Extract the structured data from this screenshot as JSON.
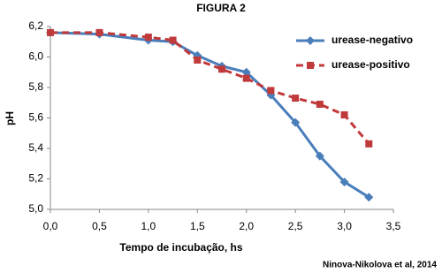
{
  "chart_data": {
    "type": "line",
    "title": "FIGURA 2",
    "x_label": "Tempo de incubação, hs",
    "y_label": "pH",
    "annotation": "Ninova-Nikolova et al, 2014",
    "x": [
      0,
      0.5,
      1.0,
      1.25,
      1.5,
      1.75,
      2.0,
      2.25,
      2.5,
      2.75,
      3.0,
      3.25
    ],
    "series": [
      {
        "name": "urease-negativo",
        "color": "#4a7ebb",
        "marker": "diamond",
        "dash": false,
        "values": [
          6.16,
          6.15,
          6.11,
          6.1,
          6.01,
          5.94,
          5.9,
          5.75,
          5.57,
          5.35,
          5.18,
          5.08
        ]
      },
      {
        "name": "urease-positivo",
        "color": "#c0393b",
        "marker": "square",
        "dash": true,
        "values": [
          6.16,
          6.16,
          6.13,
          6.11,
          5.98,
          5.92,
          5.86,
          5.78,
          5.73,
          5.69,
          5.62,
          5.43
        ]
      }
    ],
    "xlim": [
      0,
      3.5
    ],
    "xticks": [
      {
        "value": 0,
        "label": "0,0"
      },
      {
        "value": 0.5,
        "label": "0,5"
      },
      {
        "value": 1,
        "label": "1,0"
      },
      {
        "value": 1.5,
        "label": "1,5"
      },
      {
        "value": 2,
        "label": "2,0"
      },
      {
        "value": 2.5,
        "label": "2,5"
      },
      {
        "value": 3,
        "label": "3,0"
      },
      {
        "value": 3.5,
        "label": "3,5"
      }
    ],
    "ylim": [
      5.0,
      6.2
    ],
    "yticks": [
      {
        "value": 5.0,
        "label": "5,0"
      },
      {
        "value": 5.2,
        "label": "5,2"
      },
      {
        "value": 5.4,
        "label": "5,4"
      },
      {
        "value": 5.6,
        "label": "5,6"
      },
      {
        "value": 5.8,
        "label": "5,8"
      },
      {
        "value": 6.0,
        "label": "6,0"
      },
      {
        "value": 6.2,
        "label": "6,2"
      }
    ],
    "grid": false,
    "legend": "top-right"
  }
}
